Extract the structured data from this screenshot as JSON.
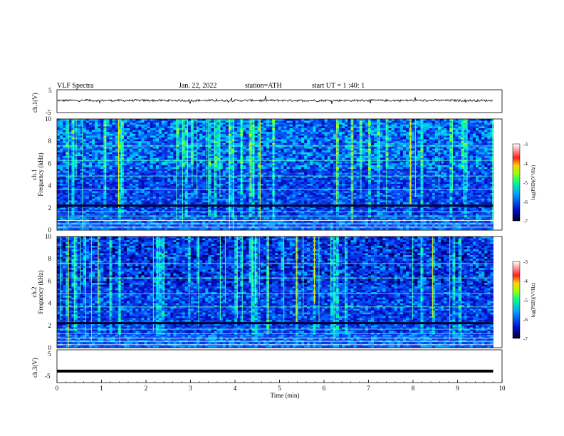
{
  "header": {
    "title": "VLF  Spectra",
    "date": "Jan. 22, 2022",
    "station": "station=ATH",
    "start": "start  UT  =   1 :40: 1"
  },
  "chart_data": [
    {
      "type": "line",
      "name": "ch1-waveform",
      "ylabel": "ch.1(V)",
      "ylim": [
        -5,
        5
      ],
      "yticks": [
        "5",
        "-5"
      ],
      "x_range_min": [
        0,
        9.8
      ],
      "baseline_v": 0.3
    },
    {
      "type": "heatmap",
      "name": "ch1-spectrogram",
      "ylabel_lines": [
        "ch.1",
        "Frequency  (kHz)"
      ],
      "ylim_khz": [
        0,
        10
      ],
      "yticks": [
        "0",
        "2",
        "4",
        "6",
        "8",
        "10"
      ],
      "colorbar": {
        "label": "log(PSD)(V²/Hz)",
        "range": [
          -7,
          -3
        ],
        "ticks": [
          "-3",
          "-4",
          "-5",
          "-6",
          "-7"
        ],
        "colors": [
          "#000040",
          "#0000ff",
          "#00c0ff",
          "#00ff80",
          "#ffff00",
          "#ff0000",
          "#ffffff"
        ]
      }
    },
    {
      "type": "heatmap",
      "name": "ch2-spectrogram",
      "ylabel_lines": [
        "ch.2",
        "Frequency  (kHz)"
      ],
      "ylim_khz": [
        0,
        10
      ],
      "yticks": [
        "0",
        "2",
        "4",
        "6",
        "8",
        "10"
      ],
      "colorbar": {
        "label": "log(PSD)(V²/Hz)",
        "range": [
          -7,
          -3
        ],
        "ticks": [
          "-3",
          "-4",
          "-5",
          "-6",
          "-7"
        ]
      }
    },
    {
      "type": "line",
      "name": "ch3-waveform",
      "ylabel": "ch.3(V)",
      "ylim": [
        -5,
        5
      ],
      "yticks": [
        "5",
        "-5"
      ],
      "baseline_v": -1.5
    }
  ],
  "xaxis": {
    "label": "Time  (min)",
    "range": [
      0,
      10
    ],
    "ticks": [
      "0",
      "1",
      "2",
      "3",
      "4",
      "5",
      "6",
      "7",
      "8",
      "9",
      "10"
    ],
    "data_end_min": 9.8
  }
}
